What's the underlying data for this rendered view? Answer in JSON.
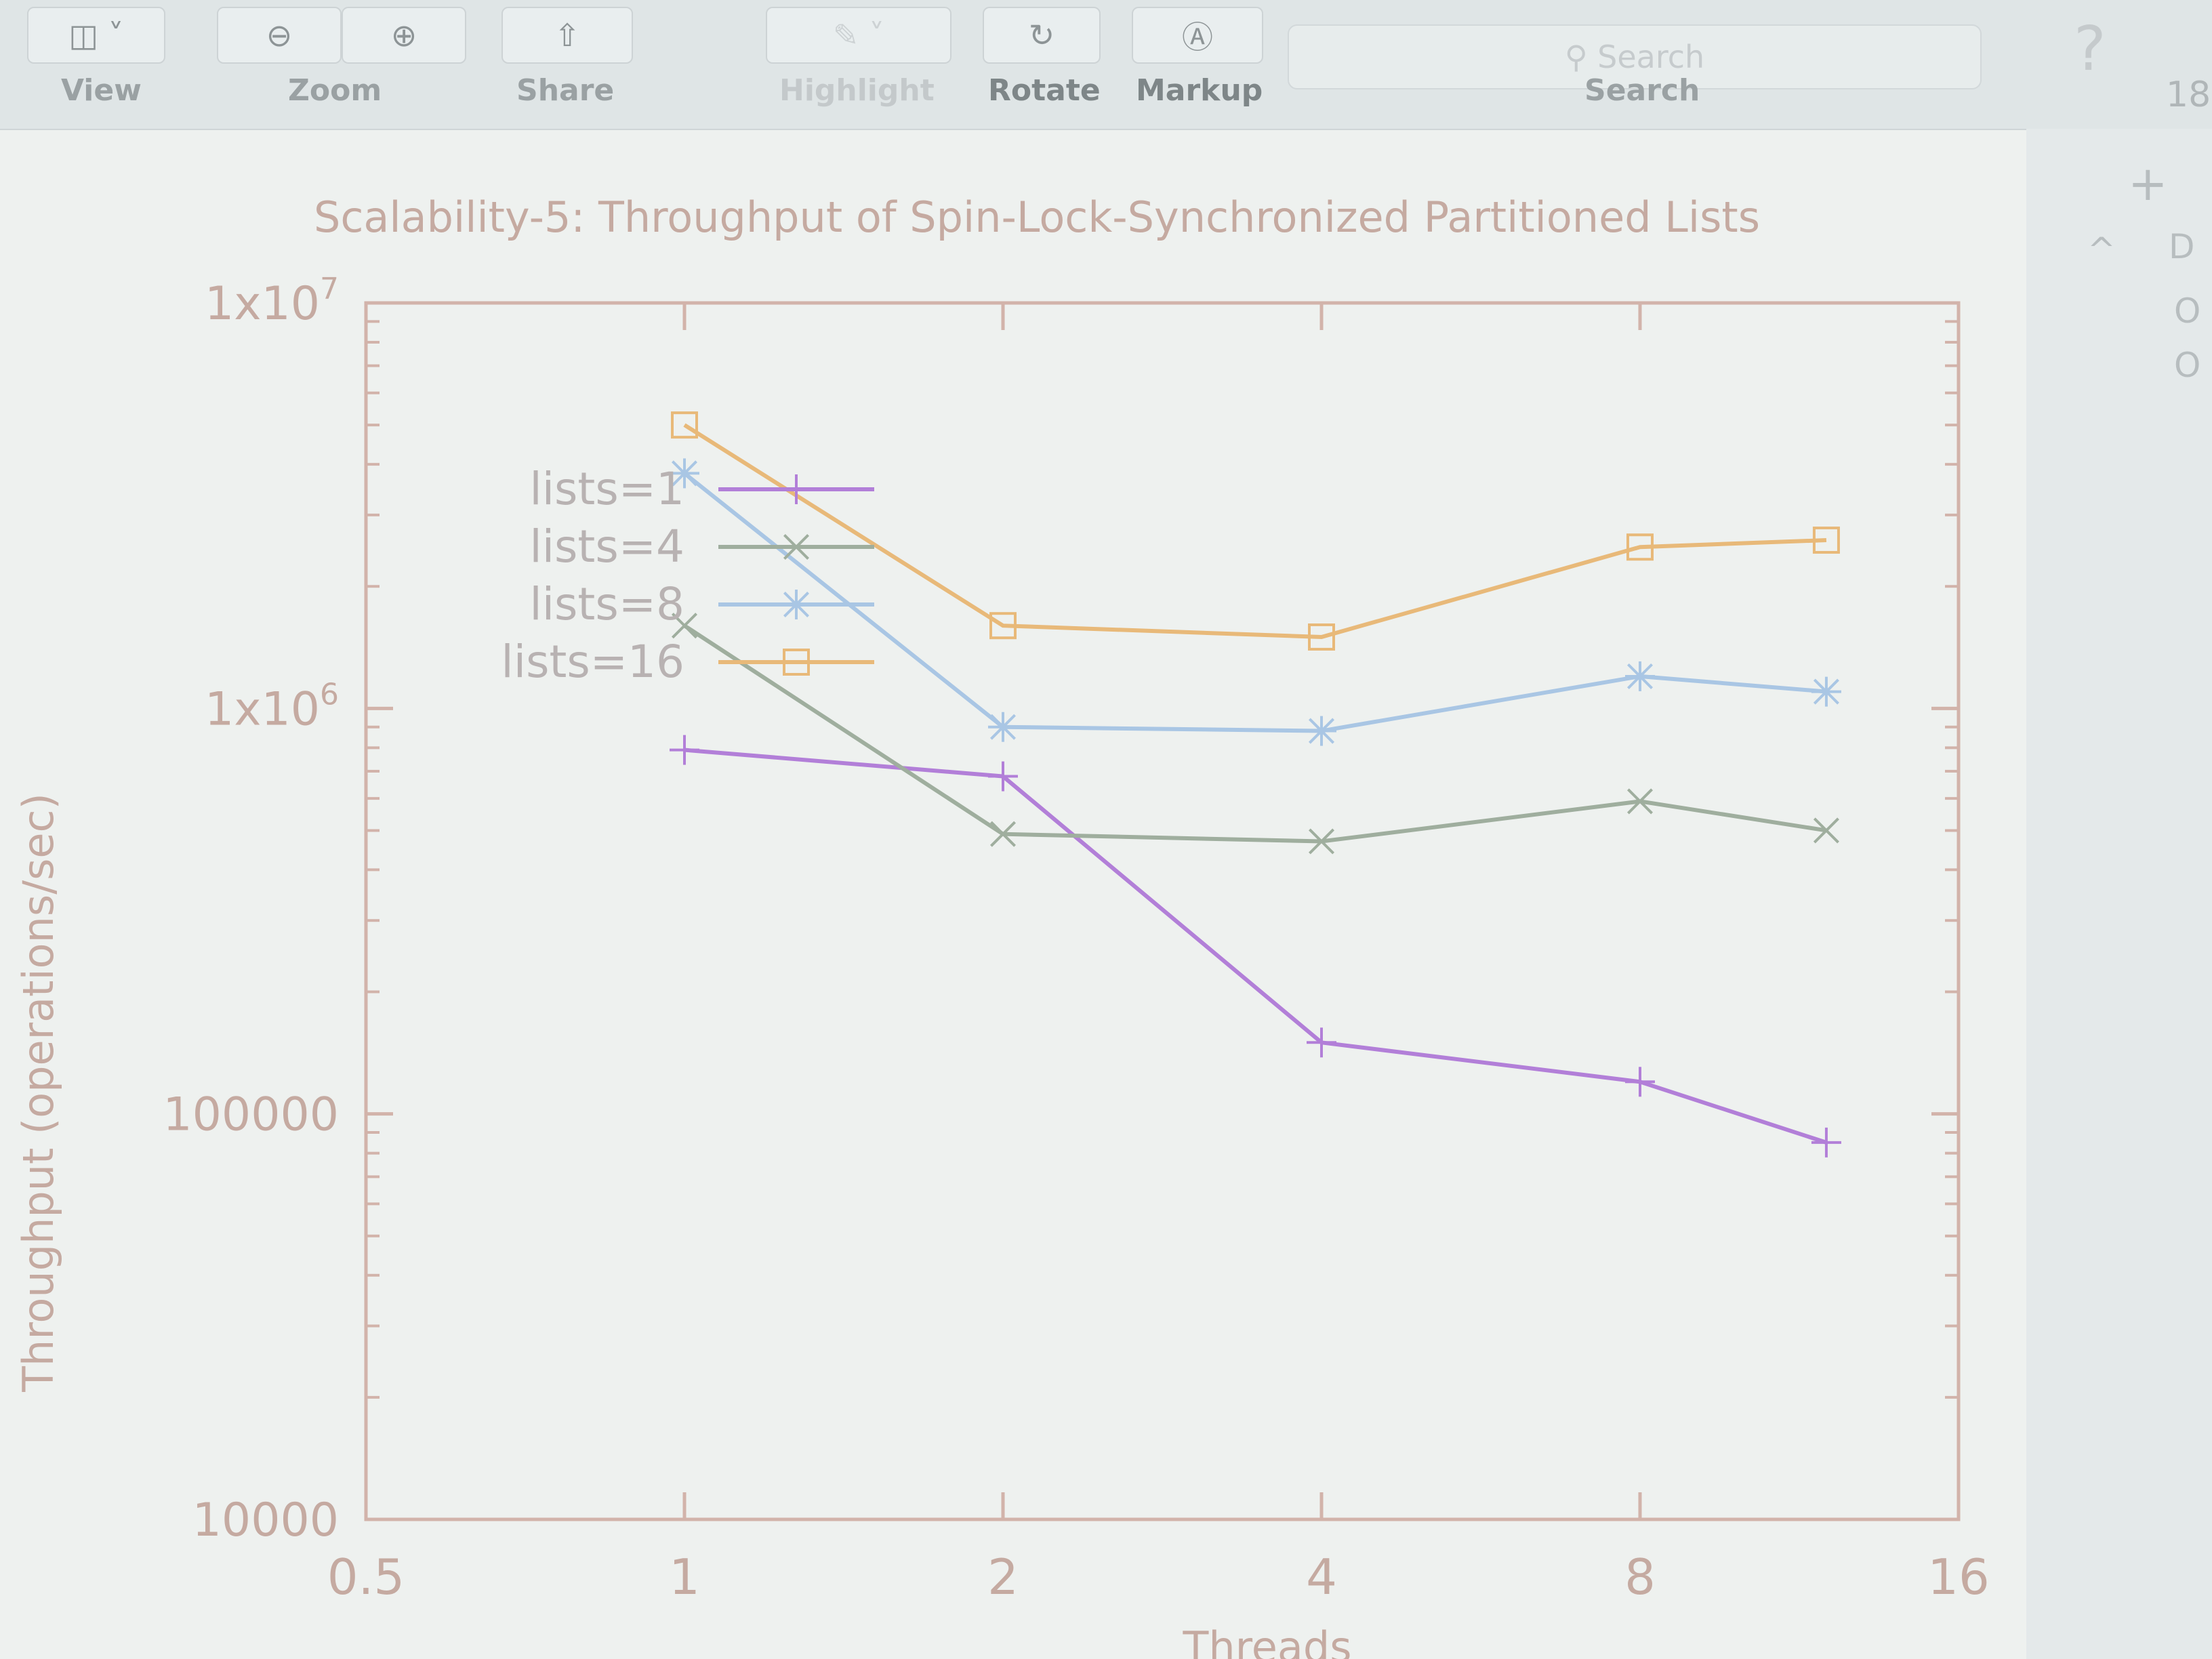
{
  "toolbar": {
    "view_label": "View",
    "zoom_label": "Zoom",
    "share_label": "Share",
    "highlight_label": "Highlight",
    "rotate_label": "Rotate",
    "markup_label": "Markup",
    "search_label": "Search",
    "search_placeholder": "Search",
    "page_indicator": "18"
  },
  "chart_data": {
    "type": "line",
    "title": "Scalability-5: Throughput of Spin-Lock-Synchronized Partitioned Lists",
    "xlabel": "Threads",
    "ylabel": "Throughput (operations/sec)",
    "x_scale": "log2",
    "y_scale": "log10",
    "xlim": [
      0.5,
      16
    ],
    "ylim": [
      10000,
      10000000
    ],
    "x_ticks": [
      0.5,
      1,
      2,
      4,
      8,
      16
    ],
    "x_tick_labels": [
      "0.5",
      "1",
      "2",
      "4",
      "8",
      "16"
    ],
    "y_ticks": [
      10000,
      100000,
      1000000,
      10000000
    ],
    "y_tick_labels": [
      "10000",
      "100000",
      "1x10^6",
      "1x10^7"
    ],
    "grid": false,
    "legend_position": "top-left",
    "series": [
      {
        "name": "lists=1",
        "color": "#b27fd8",
        "marker": "plus",
        "x": [
          1,
          2,
          4,
          8,
          12
        ],
        "y": [
          790000,
          680000,
          150000,
          120000,
          85000
        ]
      },
      {
        "name": "lists=4",
        "color": "#9fae9e",
        "marker": "cross",
        "x": [
          1,
          2,
          4,
          8,
          12
        ],
        "y": [
          1600000,
          490000,
          470000,
          590000,
          500000
        ]
      },
      {
        "name": "lists=8",
        "color": "#a9c6e4",
        "marker": "star",
        "x": [
          1,
          2,
          4,
          8,
          12
        ],
        "y": [
          3800000,
          900000,
          880000,
          1200000,
          1100000
        ]
      },
      {
        "name": "lists=16",
        "color": "#e8b979",
        "marker": "square",
        "x": [
          1,
          2,
          4,
          8,
          12
        ],
        "y": [
          5000000,
          1600000,
          1500000,
          2500000,
          2600000
        ]
      }
    ]
  },
  "sidebar": {
    "glyphs": [
      "+",
      "^",
      "D",
      "O",
      "O"
    ]
  }
}
